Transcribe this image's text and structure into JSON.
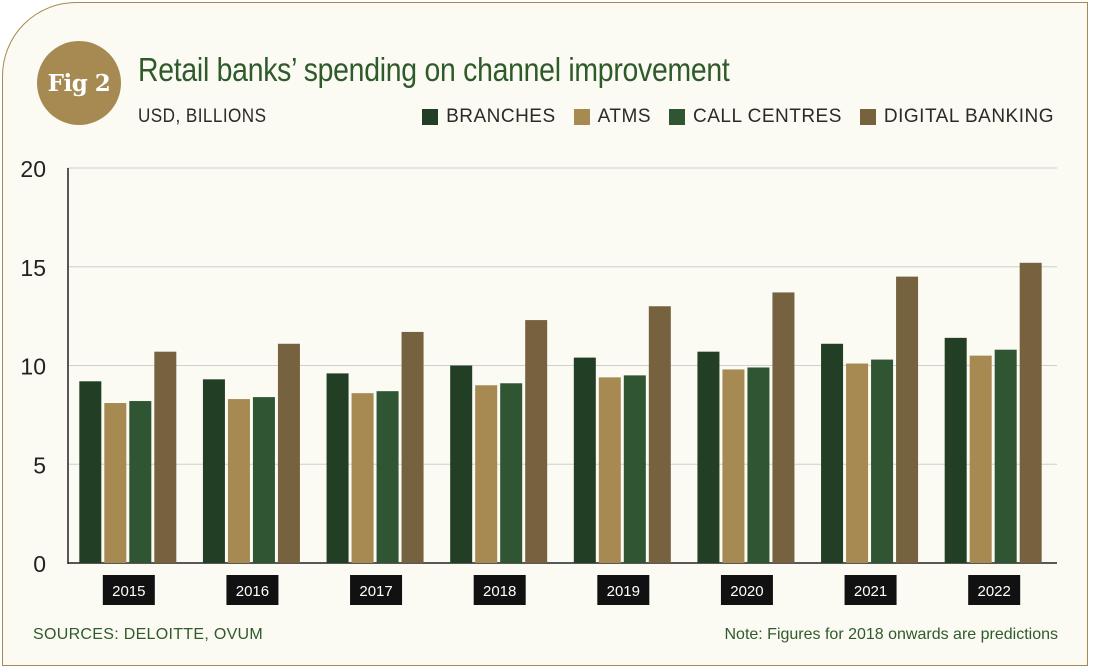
{
  "figure": {
    "badge": "Fig 2",
    "title": "Retail banks’ spending on channel improvement",
    "unit": "USD, BILLIONS",
    "sources": "SOURCES:  DELOITTE, OVUM",
    "note": "Note: Figures for 2018 onwards are predictions"
  },
  "colors": {
    "branches": "#223f25",
    "atms": "#a68a52",
    "call_centres": "#2f5533",
    "digital_banking": "#776240",
    "grid": "#cfcfcf",
    "axis": "#222222",
    "badge": "#a68a52",
    "frame": "#a8884c"
  },
  "chart_data": {
    "type": "bar",
    "categories": [
      "2015",
      "2016",
      "2017",
      "2018",
      "2019",
      "2020",
      "2021",
      "2022"
    ],
    "series": [
      {
        "name": "BRANCHES",
        "color": "#223f25",
        "values": [
          9.2,
          9.3,
          9.6,
          10.0,
          10.4,
          10.7,
          11.1,
          11.4
        ]
      },
      {
        "name": "ATMS",
        "color": "#a68a52",
        "values": [
          8.1,
          8.3,
          8.6,
          9.0,
          9.4,
          9.8,
          10.1,
          10.5
        ]
      },
      {
        "name": "CALL CENTRES",
        "color": "#2f5533",
        "values": [
          8.2,
          8.4,
          8.7,
          9.1,
          9.5,
          9.9,
          10.3,
          10.8
        ]
      },
      {
        "name": "DIGITAL BANKING",
        "color": "#776240",
        "values": [
          10.7,
          11.1,
          11.7,
          12.3,
          13.0,
          13.7,
          14.5,
          15.2
        ]
      }
    ],
    "yticks": [
      "0",
      "5",
      "10",
      "15",
      "20"
    ],
    "ylim": [
      0,
      20
    ],
    "grid": true,
    "legend_position": "top-right",
    "title": "Retail banks’ spending on channel improvement",
    "ylabel": "USD, BILLIONS",
    "xlabel": ""
  }
}
